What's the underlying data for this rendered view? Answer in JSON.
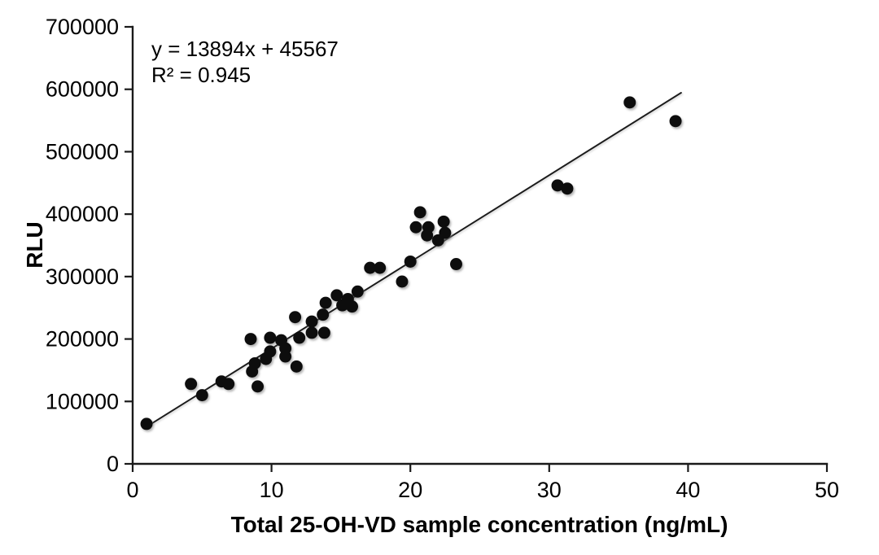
{
  "figure": {
    "background": "#ffffff",
    "dot_color": "#0a0a0a",
    "line_color": "#1a1a1a",
    "text_color": "#000000"
  },
  "chart_data": {
    "type": "scatter",
    "title": "",
    "xlabel": "Total 25-OH-VD sample concentration (ng/mL)",
    "ylabel": "RLU",
    "xlim": [
      0,
      50
    ],
    "ylim": [
      0,
      700000
    ],
    "x_ticks": [
      0,
      10,
      20,
      30,
      40,
      50
    ],
    "y_ticks": [
      0,
      100000,
      200000,
      300000,
      400000,
      500000,
      600000,
      700000
    ],
    "grid": false,
    "legend": false,
    "annotation": {
      "equation": "y = 13894x + 45567",
      "r_squared": "R² = 0.945"
    },
    "trendline": {
      "slope": 13894,
      "intercept": 45567,
      "x_start": 0.95,
      "x_end": 39.5
    },
    "series": [
      {
        "name": "samples",
        "marker": "circle",
        "marker_radius": 7.5,
        "color": "#0a0a0a",
        "points": [
          [
            1.0,
            64000
          ],
          [
            4.2,
            128000
          ],
          [
            5.0,
            110000
          ],
          [
            6.4,
            132000
          ],
          [
            6.9,
            128000
          ],
          [
            8.5,
            200000
          ],
          [
            8.6,
            148000
          ],
          [
            8.8,
            161000
          ],
          [
            9.0,
            124000
          ],
          [
            9.6,
            168000
          ],
          [
            9.9,
            202000
          ],
          [
            9.9,
            180000
          ],
          [
            10.7,
            198000
          ],
          [
            11.0,
            185000
          ],
          [
            11.0,
            172000
          ],
          [
            11.7,
            235000
          ],
          [
            11.8,
            156000
          ],
          [
            12.0,
            202000
          ],
          [
            12.9,
            228000
          ],
          [
            12.9,
            210000
          ],
          [
            13.7,
            239000
          ],
          [
            13.8,
            210000
          ],
          [
            13.9,
            258000
          ],
          [
            14.7,
            270000
          ],
          [
            15.1,
            254000
          ],
          [
            15.5,
            264000
          ],
          [
            15.8,
            252000
          ],
          [
            16.2,
            276000
          ],
          [
            17.1,
            314000
          ],
          [
            17.8,
            314000
          ],
          [
            19.4,
            292000
          ],
          [
            20.0,
            324000
          ],
          [
            20.4,
            379000
          ],
          [
            20.7,
            403000
          ],
          [
            21.2,
            366000
          ],
          [
            21.3,
            379000
          ],
          [
            22.0,
            358000
          ],
          [
            22.4,
            388000
          ],
          [
            22.5,
            370000
          ],
          [
            23.3,
            320000
          ],
          [
            30.6,
            446000
          ],
          [
            31.3,
            441000
          ],
          [
            35.8,
            579000
          ],
          [
            39.1,
            549000
          ]
        ]
      }
    ]
  }
}
